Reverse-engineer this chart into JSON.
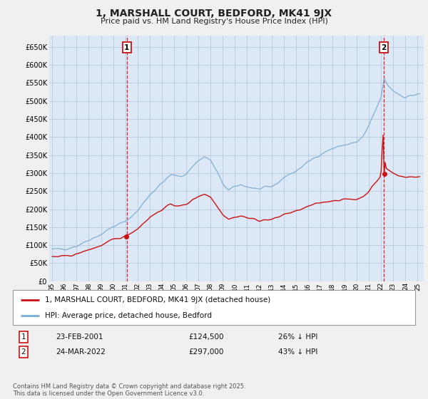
{
  "title": "1, MARSHALL COURT, BEDFORD, MK41 9JX",
  "subtitle": "Price paid vs. HM Land Registry's House Price Index (HPI)",
  "ylabel_ticks": [
    0,
    50000,
    100000,
    150000,
    200000,
    250000,
    300000,
    350000,
    400000,
    450000,
    500000,
    550000,
    600000,
    650000
  ],
  "ylim": [
    0,
    680000
  ],
  "xlim_start": 1994.75,
  "xlim_end": 2025.5,
  "background_color": "#f0f0f0",
  "plot_bg_color": "#dce8f5",
  "grid_color": "#b0c4d8",
  "hpi_color": "#7aadd4",
  "price_color": "#cc1111",
  "vline_color": "#dd0000",
  "transaction1": {
    "year": 2001.12,
    "label": "1",
    "price": 124500,
    "date": "23-FEB-2001",
    "pct": "26% ↓ HPI"
  },
  "transaction2": {
    "year": 2022.22,
    "label": "2",
    "price": 297000,
    "date": "24-MAR-2022",
    "pct": "43% ↓ HPI"
  },
  "legend_line1": "1, MARSHALL COURT, BEDFORD, MK41 9JX (detached house)",
  "legend_line2": "HPI: Average price, detached house, Bedford",
  "footer": "Contains HM Land Registry data © Crown copyright and database right 2025.\nThis data is licensed under the Open Government Licence v3.0."
}
